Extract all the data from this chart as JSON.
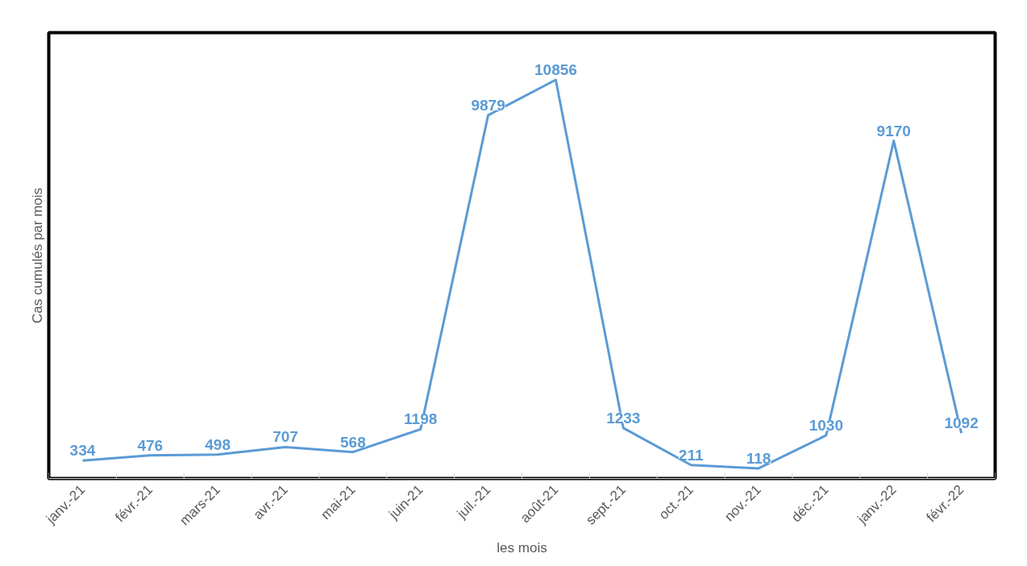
{
  "chart_data": {
    "type": "line",
    "xlabel": "les mois",
    "ylabel": "Cas cumulés par mois",
    "categories": [
      "janv.-21",
      "févr.-21",
      "mars-21",
      "avr.-21",
      "mai-21",
      "juin-21",
      "juil.-21",
      "août-21",
      "sept.-21",
      "oct.-21",
      "nov.-21",
      "déc.-21",
      "janv.-22",
      "févr.-22"
    ],
    "series": [
      {
        "color": "#5b9bd5",
        "values": [
          334,
          476,
          498,
          707,
          568,
          1198,
          9879,
          10856,
          1233,
          211,
          118,
          1030,
          9170,
          1092
        ]
      }
    ],
    "data_labels": true,
    "grid": false,
    "marker": "none",
    "line_style": "solid",
    "tick_labels": "x"
  }
}
